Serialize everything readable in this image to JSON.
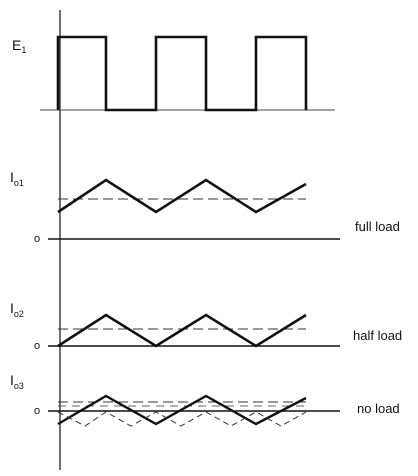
{
  "waveforms": [
    {
      "id": "E1",
      "label_main": "E",
      "label_sub": "1",
      "zero_label": "",
      "caption": ""
    },
    {
      "id": "Io1",
      "label_main": "I",
      "label_sub": "o1",
      "zero_label": "o",
      "caption": "full load"
    },
    {
      "id": "Io2",
      "label_main": "I",
      "label_sub": "o2",
      "zero_label": "o",
      "caption": "half load"
    },
    {
      "id": "Io3",
      "label_main": "I",
      "label_sub": "o3",
      "zero_label": "o",
      "caption": "no load"
    }
  ],
  "colors": {
    "ink": "#111111",
    "dashed": "#333333"
  }
}
